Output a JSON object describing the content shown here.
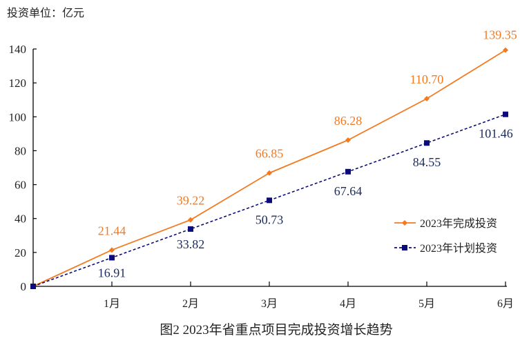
{
  "chart_data": {
    "type": "line",
    "unit_label": "投资单位：亿元",
    "title": "图2 2023年省重点项目完成投资增长趋势",
    "categories": [
      "",
      "1月",
      "2月",
      "3月",
      "4月",
      "5月",
      "6月"
    ],
    "ylim": [
      0,
      140
    ],
    "yticks": [
      0,
      20,
      40,
      60,
      80,
      100,
      120,
      140
    ],
    "grid": false,
    "legend_position": "bottom-right",
    "series": [
      {
        "name": "2023年完成投资",
        "values": [
          0,
          21.44,
          39.22,
          66.85,
          86.28,
          110.7,
          139.35
        ],
        "labels": [
          "",
          "21.44",
          "39.22",
          "66.85",
          "86.28",
          "110.70",
          "139.35"
        ],
        "color": "#F47A20",
        "marker": "diamond",
        "line": "solid"
      },
      {
        "name": "2023年计划投资",
        "values": [
          0,
          16.91,
          33.82,
          50.73,
          67.64,
          84.55,
          101.46
        ],
        "labels": [
          "",
          "16.91",
          "33.82",
          "50.73",
          "67.64",
          "84.55",
          "101.46"
        ],
        "color": "#0B0B7A",
        "marker": "square",
        "line": "dashed"
      }
    ]
  }
}
